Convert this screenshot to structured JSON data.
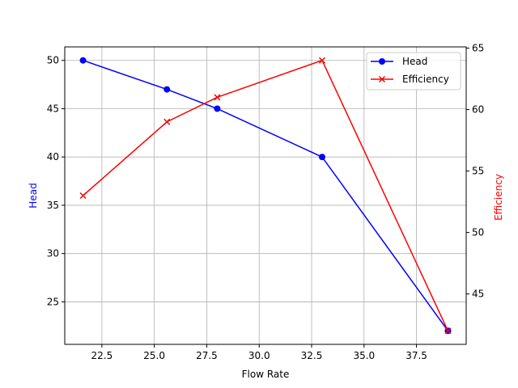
{
  "chart_data": {
    "type": "line",
    "title": "",
    "xlabel": "Flow Rate",
    "ylabel_left": "Head",
    "ylabel_right": "Efficiency",
    "x": [
      21.6,
      25.6,
      28.0,
      33.0,
      39.0
    ],
    "xlim": [
      20.73,
      39.87
    ],
    "xticks": [
      22.5,
      25.0,
      27.5,
      30.0,
      32.5,
      35.0,
      37.5
    ],
    "xtick_labels": [
      "22.5",
      "25.0",
      "27.5",
      "30.0",
      "32.5",
      "35.0",
      "37.5"
    ],
    "grid": true,
    "legend_placement": "upper right",
    "series": [
      {
        "name": "Head",
        "axis": "left",
        "values": [
          50,
          47,
          45,
          40,
          22
        ],
        "color": "#0000ff",
        "marker": "circle",
        "ylim": [
          20.6,
          51.4
        ],
        "yticks": [
          25,
          30,
          35,
          40,
          45,
          50
        ],
        "ytick_labels": [
          "25",
          "30",
          "35",
          "40",
          "45",
          "50"
        ]
      },
      {
        "name": "Efficiency",
        "axis": "right",
        "values": [
          53,
          59,
          61,
          64,
          42
        ],
        "color": "#ff0000",
        "marker": "x",
        "ylim": [
          40.9,
          65.1
        ],
        "yticks": [
          45,
          50,
          55,
          60,
          65
        ],
        "ytick_labels": [
          "45",
          "50",
          "55",
          "60",
          "65"
        ]
      }
    ]
  }
}
